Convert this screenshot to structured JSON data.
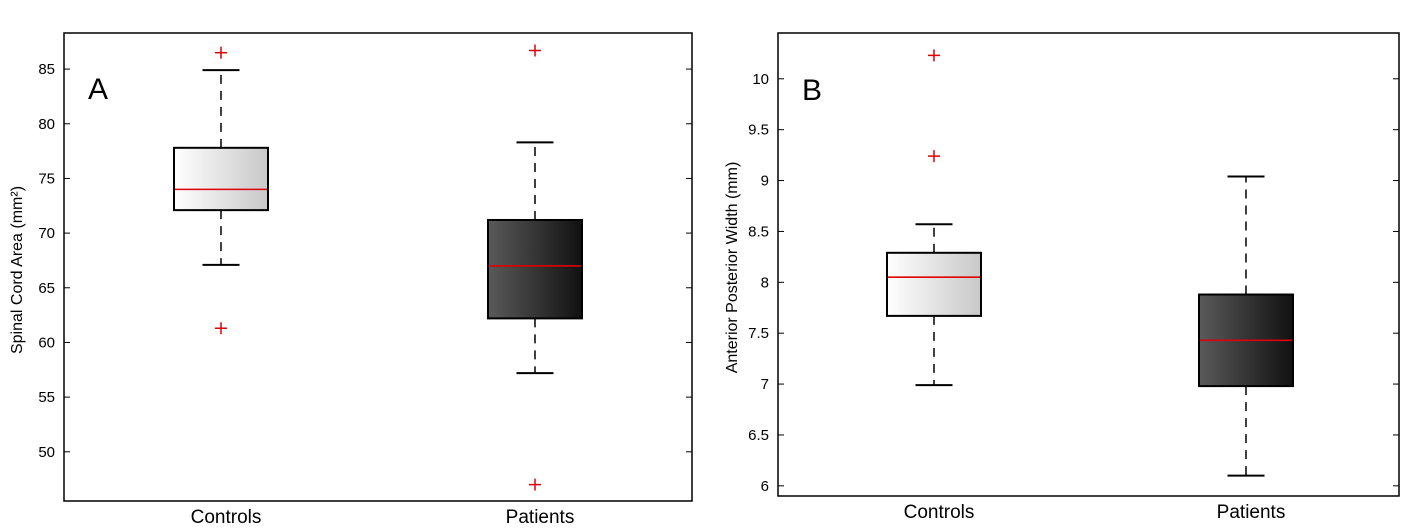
{
  "chart_data": [
    {
      "type": "box",
      "panel_label": "A",
      "ylabel": "Spinal Cord Area (mm²)",
      "ylim": [
        45.5,
        88.3
      ],
      "yticks": [
        "85",
        "80",
        "75",
        "70",
        "65",
        "60",
        "55",
        "50"
      ],
      "categories": [
        "Controls",
        "Patients"
      ],
      "boxes": [
        {
          "name": "Controls",
          "whisker_low": 67.1,
          "q1": 72.1,
          "median": 74.0,
          "q3": 77.8,
          "whisker_high": 84.9,
          "outliers": [
            86.5,
            61.3
          ],
          "shade": "light"
        },
        {
          "name": "Patients",
          "whisker_low": 57.2,
          "q1": 62.2,
          "median": 67.0,
          "q3": 71.2,
          "whisker_high": 78.3,
          "outliers": [
            86.7,
            47.0
          ],
          "shade": "dark"
        }
      ]
    },
    {
      "type": "box",
      "panel_label": "B",
      "ylabel": "Anterior Posterior Width (mm)",
      "ylim": [
        5.9,
        10.45
      ],
      "yticks": [
        "10",
        "9.5",
        "9",
        "8.5",
        "8",
        "7.5",
        "7",
        "6.5",
        "6"
      ],
      "categories": [
        "Controls",
        "Patients"
      ],
      "boxes": [
        {
          "name": "Controls",
          "whisker_low": 6.99,
          "q1": 7.67,
          "median": 8.05,
          "q3": 8.29,
          "whisker_high": 8.57,
          "outliers": [
            10.23,
            9.24
          ],
          "shade": "light"
        },
        {
          "name": "Patients",
          "whisker_low": 6.1,
          "q1": 6.98,
          "median": 7.43,
          "q3": 7.88,
          "whisker_high": 9.04,
          "outliers": [],
          "shade": "dark"
        }
      ]
    }
  ],
  "colors": {
    "median": "#e00000",
    "outlier": "#e00000",
    "light_box_start": "#ffffff",
    "light_box_end": "#c8c8c8",
    "dark_box_start": "#5a5a5a",
    "dark_box_end": "#111111"
  }
}
